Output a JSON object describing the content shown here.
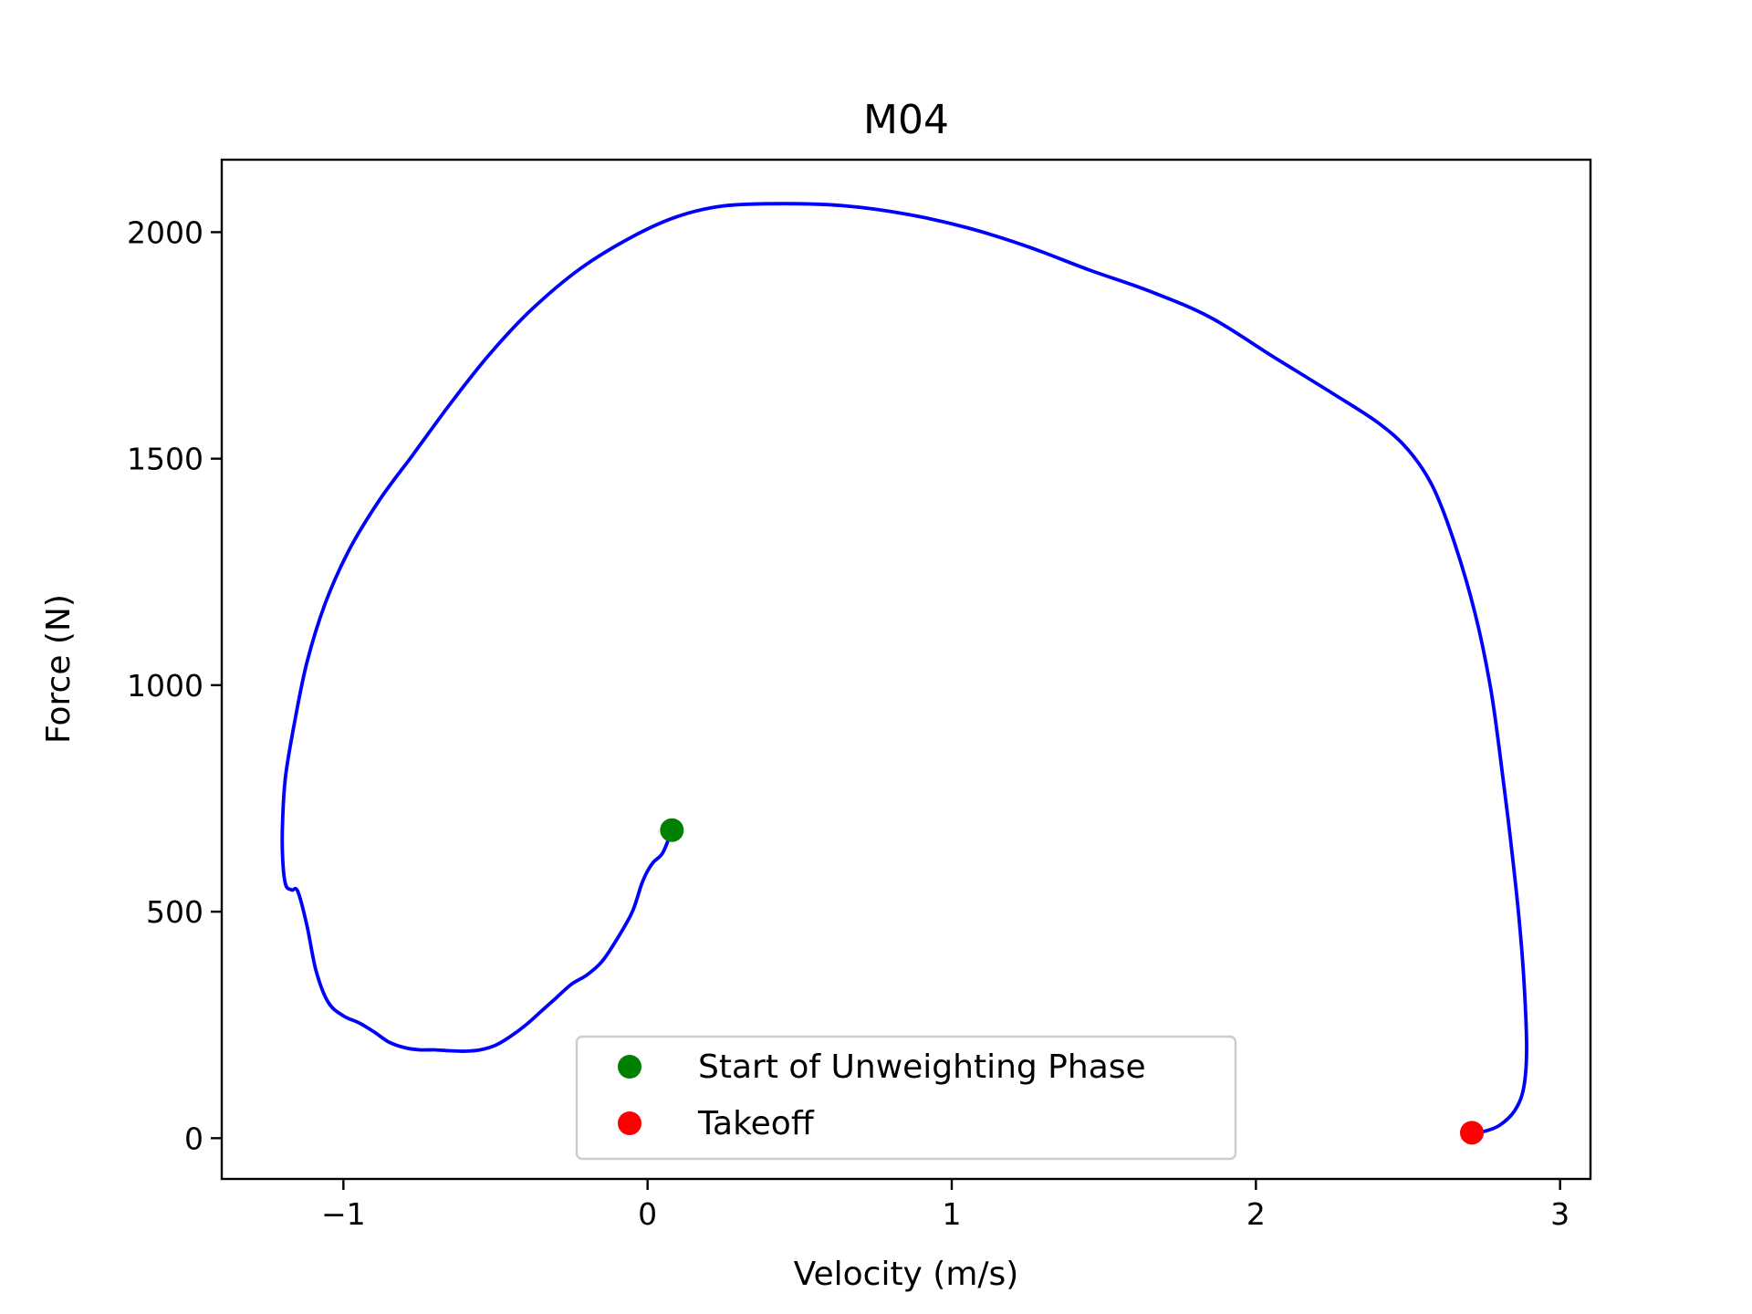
{
  "chart_data": {
    "type": "line",
    "title": "M04",
    "xlabel": "Velocity (m/s)",
    "ylabel": "Force (N)",
    "xlim": [
      -1.4,
      3.1
    ],
    "ylim": [
      -90,
      2160
    ],
    "x_ticks": [
      -1,
      0,
      1,
      2,
      3
    ],
    "x_tick_labels": [
      "−1",
      "0",
      "1",
      "2",
      "3"
    ],
    "y_ticks": [
      0,
      500,
      1000,
      1500,
      2000
    ],
    "y_tick_labels": [
      "0",
      "500",
      "1000",
      "1500",
      "2000"
    ],
    "grid": false,
    "legend_position": "lower center",
    "series": [
      {
        "color": "#0000ff",
        "points": [
          [
            0.08,
            680
          ],
          [
            0.05,
            630
          ],
          [
            0.02,
            610
          ],
          [
            0.0,
            590
          ],
          [
            -0.02,
            560
          ],
          [
            -0.05,
            500
          ],
          [
            -0.1,
            440
          ],
          [
            -0.15,
            390
          ],
          [
            -0.2,
            360
          ],
          [
            -0.25,
            340
          ],
          [
            -0.3,
            310
          ],
          [
            -0.35,
            280
          ],
          [
            -0.4,
            250
          ],
          [
            -0.45,
            225
          ],
          [
            -0.5,
            205
          ],
          [
            -0.55,
            195
          ],
          [
            -0.6,
            192
          ],
          [
            -0.65,
            193
          ],
          [
            -0.7,
            195
          ],
          [
            -0.75,
            195
          ],
          [
            -0.8,
            200
          ],
          [
            -0.85,
            212
          ],
          [
            -0.9,
            235
          ],
          [
            -0.95,
            255
          ],
          [
            -1.0,
            270
          ],
          [
            -1.05,
            300
          ],
          [
            -1.09,
            370
          ],
          [
            -1.12,
            470
          ],
          [
            -1.15,
            545
          ],
          [
            -1.17,
            548
          ],
          [
            -1.19,
            560
          ],
          [
            -1.2,
            620
          ],
          [
            -1.2,
            700
          ],
          [
            -1.19,
            800
          ],
          [
            -1.16,
            920
          ],
          [
            -1.12,
            1050
          ],
          [
            -1.06,
            1180
          ],
          [
            -0.98,
            1300
          ],
          [
            -0.88,
            1410
          ],
          [
            -0.77,
            1510
          ],
          [
            -0.65,
            1620
          ],
          [
            -0.52,
            1730
          ],
          [
            -0.38,
            1830
          ],
          [
            -0.22,
            1920
          ],
          [
            -0.05,
            1990
          ],
          [
            0.1,
            2035
          ],
          [
            0.25,
            2058
          ],
          [
            0.45,
            2063
          ],
          [
            0.65,
            2058
          ],
          [
            0.85,
            2040
          ],
          [
            1.05,
            2010
          ],
          [
            1.25,
            1968
          ],
          [
            1.45,
            1917
          ],
          [
            1.65,
            1870
          ],
          [
            1.85,
            1812
          ],
          [
            2.05,
            1728
          ],
          [
            2.25,
            1645
          ],
          [
            2.4,
            1580
          ],
          [
            2.5,
            1520
          ],
          [
            2.58,
            1440
          ],
          [
            2.65,
            1320
          ],
          [
            2.72,
            1160
          ],
          [
            2.77,
            1000
          ],
          [
            2.8,
            860
          ],
          [
            2.83,
            700
          ],
          [
            2.86,
            520
          ],
          [
            2.88,
            360
          ],
          [
            2.89,
            200
          ],
          [
            2.88,
            110
          ],
          [
            2.85,
            60
          ],
          [
            2.8,
            28
          ],
          [
            2.75,
            15
          ],
          [
            2.71,
            12
          ]
        ]
      }
    ],
    "markers": [
      {
        "label": "Start of Unweighting Phase",
        "x": 0.08,
        "y": 680,
        "color": "#008000"
      },
      {
        "label": "Takeoff",
        "x": 2.71,
        "y": 12,
        "color": "#ff0000"
      }
    ]
  }
}
